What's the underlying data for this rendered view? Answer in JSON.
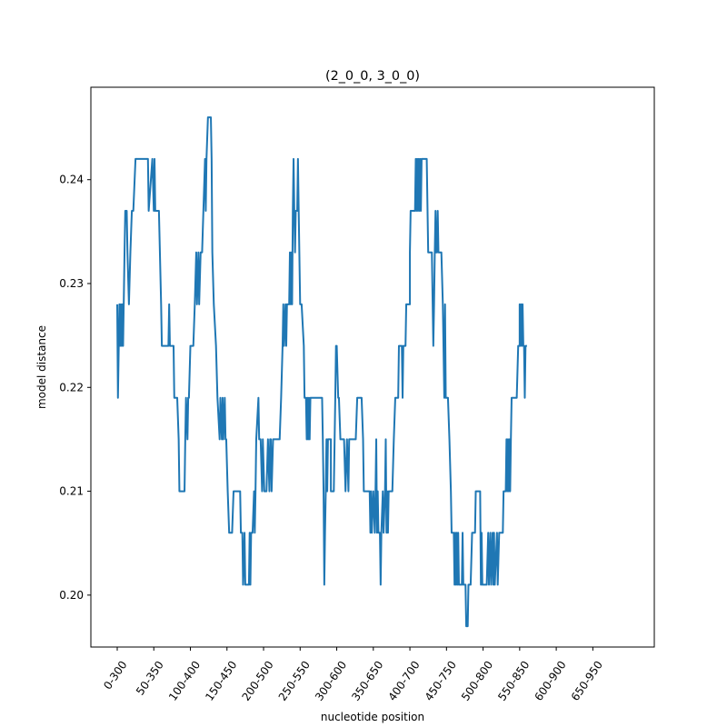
{
  "chart_data": {
    "type": "line",
    "title": "(2_0_0, 3_0_0)",
    "xlabel": "nucleotide position",
    "ylabel": "model distance",
    "x_tick_labels": [
      "0-300",
      "50-350",
      "100-400",
      "150-450",
      "200-500",
      "250-550",
      "300-600",
      "350-650",
      "400-700",
      "450-750",
      "500-800",
      "550-850",
      "600-900",
      "650-950"
    ],
    "x_tick_positions": [
      0,
      50,
      100,
      150,
      200,
      250,
      300,
      350,
      400,
      450,
      500,
      550,
      600,
      650
    ],
    "y_ticks": [
      0.2,
      0.21,
      0.22,
      0.23,
      0.24
    ],
    "y_tick_labels": [
      "0.20",
      "0.21",
      "0.22",
      "0.23",
      "0.24"
    ],
    "xlim": [
      -36,
      734
    ],
    "ylim": [
      0.195,
      0.2489
    ],
    "grid": false,
    "series": [
      {
        "color": "#1f77b4",
        "points": [
          [
            0,
            0.228
          ],
          [
            1,
            0.219
          ],
          [
            3,
            0.228
          ],
          [
            4,
            0.224
          ],
          [
            5,
            0.228
          ],
          [
            6,
            0.224
          ],
          [
            7,
            0.228
          ],
          [
            8,
            0.224
          ],
          [
            10,
            0.233
          ],
          [
            11,
            0.237
          ],
          [
            13,
            0.237
          ],
          [
            14,
            0.233
          ],
          [
            16,
            0.228
          ],
          [
            18,
            0.233
          ],
          [
            20,
            0.237
          ],
          [
            22,
            0.237
          ],
          [
            25,
            0.242
          ],
          [
            42,
            0.242
          ],
          [
            43,
            0.237
          ],
          [
            48,
            0.242
          ],
          [
            50,
            0.237
          ],
          [
            51,
            0.242
          ],
          [
            52,
            0.237
          ],
          [
            57,
            0.237
          ],
          [
            60,
            0.228
          ],
          [
            61,
            0.224
          ],
          [
            70,
            0.224
          ],
          [
            71,
            0.228
          ],
          [
            72,
            0.224
          ],
          [
            77,
            0.224
          ],
          [
            78,
            0.219
          ],
          [
            82,
            0.219
          ],
          [
            84,
            0.215
          ],
          [
            85,
            0.21
          ],
          [
            92,
            0.21
          ],
          [
            93,
            0.215
          ],
          [
            94,
            0.219
          ],
          [
            96,
            0.215
          ],
          [
            97,
            0.219
          ],
          [
            98,
            0.219
          ],
          [
            100,
            0.224
          ],
          [
            104,
            0.224
          ],
          [
            106,
            0.228
          ],
          [
            108,
            0.233
          ],
          [
            109,
            0.228
          ],
          [
            111,
            0.233
          ],
          [
            112,
            0.228
          ],
          [
            114,
            0.233
          ],
          [
            116,
            0.233
          ],
          [
            120,
            0.242
          ],
          [
            121,
            0.237
          ],
          [
            122,
            0.242
          ],
          [
            124,
            0.246
          ],
          [
            128,
            0.246
          ],
          [
            129,
            0.242
          ],
          [
            130,
            0.233
          ],
          [
            132,
            0.228
          ],
          [
            135,
            0.224
          ],
          [
            137,
            0.219
          ],
          [
            140,
            0.215
          ],
          [
            141,
            0.219
          ],
          [
            143,
            0.215
          ],
          [
            144,
            0.219
          ],
          [
            145,
            0.215
          ],
          [
            147,
            0.219
          ],
          [
            148,
            0.215
          ],
          [
            149,
            0.215
          ],
          [
            151,
            0.21
          ],
          [
            153,
            0.206
          ],
          [
            157,
            0.206
          ],
          [
            159,
            0.21
          ],
          [
            168,
            0.21
          ],
          [
            169,
            0.206
          ],
          [
            171,
            0.206
          ],
          [
            172,
            0.201
          ],
          [
            174,
            0.206
          ],
          [
            175,
            0.201
          ],
          [
            180,
            0.201
          ],
          [
            181,
            0.206
          ],
          [
            182,
            0.201
          ],
          [
            183,
            0.206
          ],
          [
            185,
            0.206
          ],
          [
            187,
            0.21
          ],
          [
            188,
            0.206
          ],
          [
            189,
            0.21
          ],
          [
            190,
            0.215
          ],
          [
            193,
            0.219
          ],
          [
            194,
            0.215
          ],
          [
            196,
            0.215
          ],
          [
            198,
            0.21
          ],
          [
            199,
            0.215
          ],
          [
            201,
            0.21
          ],
          [
            204,
            0.21
          ],
          [
            206,
            0.215
          ],
          [
            208,
            0.21
          ],
          [
            209,
            0.215
          ],
          [
            210,
            0.215
          ],
          [
            211,
            0.21
          ],
          [
            213,
            0.215
          ],
          [
            216,
            0.215
          ],
          [
            222,
            0.215
          ],
          [
            224,
            0.219
          ],
          [
            226,
            0.224
          ],
          [
            227,
            0.228
          ],
          [
            228,
            0.224
          ],
          [
            230,
            0.228
          ],
          [
            231,
            0.224
          ],
          [
            232,
            0.228
          ],
          [
            235,
            0.228
          ],
          [
            236,
            0.233
          ],
          [
            237,
            0.228
          ],
          [
            238,
            0.233
          ],
          [
            239,
            0.228
          ],
          [
            240,
            0.237
          ],
          [
            241,
            0.242
          ],
          [
            242,
            0.237
          ],
          [
            243,
            0.233
          ],
          [
            244,
            0.237
          ],
          [
            246,
            0.237
          ],
          [
            247,
            0.242
          ],
          [
            248,
            0.237
          ],
          [
            250,
            0.228
          ],
          [
            252,
            0.228
          ],
          [
            255,
            0.224
          ],
          [
            256,
            0.219
          ],
          [
            258,
            0.219
          ],
          [
            259,
            0.215
          ],
          [
            260,
            0.219
          ],
          [
            261,
            0.215
          ],
          [
            262,
            0.219
          ],
          [
            263,
            0.215
          ],
          [
            264,
            0.219
          ],
          [
            280,
            0.219
          ],
          [
            281,
            0.215
          ],
          [
            282,
            0.21
          ],
          [
            283,
            0.201
          ],
          [
            284,
            0.206
          ],
          [
            285,
            0.21
          ],
          [
            286,
            0.215
          ],
          [
            287,
            0.21
          ],
          [
            288,
            0.215
          ],
          [
            292,
            0.215
          ],
          [
            292,
            0.21
          ],
          [
            296,
            0.21
          ],
          [
            298,
            0.219
          ],
          [
            299,
            0.224
          ],
          [
            300,
            0.224
          ],
          [
            302,
            0.219
          ],
          [
            303,
            0.219
          ],
          [
            305,
            0.215
          ],
          [
            310,
            0.215
          ],
          [
            312,
            0.21
          ],
          [
            314,
            0.215
          ],
          [
            316,
            0.21
          ],
          [
            317,
            0.215
          ],
          [
            326,
            0.215
          ],
          [
            328,
            0.219
          ],
          [
            334,
            0.219
          ],
          [
            336,
            0.215
          ],
          [
            337,
            0.21
          ],
          [
            345,
            0.21
          ],
          [
            346,
            0.206
          ],
          [
            347,
            0.21
          ],
          [
            348,
            0.206
          ],
          [
            350,
            0.21
          ],
          [
            352,
            0.206
          ],
          [
            353,
            0.21
          ],
          [
            354,
            0.215
          ],
          [
            355,
            0.206
          ],
          [
            356,
            0.21
          ],
          [
            357,
            0.206
          ],
          [
            359,
            0.206
          ],
          [
            360,
            0.201
          ],
          [
            361,
            0.206
          ],
          [
            363,
            0.21
          ],
          [
            364,
            0.206
          ],
          [
            366,
            0.21
          ],
          [
            367,
            0.215
          ],
          [
            368,
            0.206
          ],
          [
            369,
            0.21
          ],
          [
            370,
            0.206
          ],
          [
            371,
            0.21
          ],
          [
            376,
            0.21
          ],
          [
            378,
            0.215
          ],
          [
            380,
            0.219
          ],
          [
            384,
            0.219
          ],
          [
            385,
            0.224
          ],
          [
            389,
            0.224
          ],
          [
            390,
            0.219
          ],
          [
            391,
            0.224
          ],
          [
            394,
            0.224
          ],
          [
            395,
            0.228
          ],
          [
            400,
            0.228
          ],
          [
            400,
            0.233
          ],
          [
            401,
            0.237
          ],
          [
            407,
            0.237
          ],
          [
            408,
            0.242
          ],
          [
            409,
            0.237
          ],
          [
            410,
            0.242
          ],
          [
            411,
            0.237
          ],
          [
            412,
            0.242
          ],
          [
            413,
            0.237
          ],
          [
            414,
            0.242
          ],
          [
            415,
            0.237
          ],
          [
            416,
            0.242
          ],
          [
            423,
            0.242
          ],
          [
            425,
            0.233
          ],
          [
            430,
            0.233
          ],
          [
            432,
            0.224
          ],
          [
            433,
            0.228
          ],
          [
            434,
            0.233
          ],
          [
            435,
            0.237
          ],
          [
            436,
            0.233
          ],
          [
            437,
            0.233
          ],
          [
            438,
            0.237
          ],
          [
            439,
            0.233
          ],
          [
            443,
            0.233
          ],
          [
            445,
            0.228
          ],
          [
            447,
            0.219
          ],
          [
            448,
            0.228
          ],
          [
            449,
            0.219
          ],
          [
            452,
            0.219
          ],
          [
            454,
            0.215
          ],
          [
            456,
            0.21
          ],
          [
            457,
            0.206
          ],
          [
            460,
            0.206
          ],
          [
            461,
            0.201
          ],
          [
            462,
            0.206
          ],
          [
            463,
            0.201
          ],
          [
            464,
            0.206
          ],
          [
            465,
            0.201
          ],
          [
            466,
            0.206
          ],
          [
            467,
            0.201
          ],
          [
            471,
            0.201
          ],
          [
            472,
            0.206
          ],
          [
            473,
            0.201
          ],
          [
            476,
            0.201
          ],
          [
            477,
            0.197
          ],
          [
            479,
            0.197
          ],
          [
            480,
            0.201
          ],
          [
            483,
            0.201
          ],
          [
            485,
            0.206
          ],
          [
            489,
            0.206
          ],
          [
            490,
            0.21
          ],
          [
            496,
            0.21
          ],
          [
            497,
            0.201
          ],
          [
            498,
            0.206
          ],
          [
            499,
            0.201
          ],
          [
            505,
            0.201
          ],
          [
            507,
            0.206
          ],
          [
            508,
            0.201
          ],
          [
            510,
            0.206
          ],
          [
            511,
            0.201
          ],
          [
            513,
            0.206
          ],
          [
            514,
            0.201
          ],
          [
            515,
            0.206
          ],
          [
            516,
            0.201
          ],
          [
            519,
            0.206
          ],
          [
            520,
            0.201
          ],
          [
            522,
            0.206
          ],
          [
            527,
            0.206
          ],
          [
            528,
            0.21
          ],
          [
            531,
            0.21
          ],
          [
            532,
            0.215
          ],
          [
            533,
            0.21
          ],
          [
            534,
            0.215
          ],
          [
            535,
            0.21
          ],
          [
            536,
            0.215
          ],
          [
            537,
            0.21
          ],
          [
            538,
            0.215
          ],
          [
            539,
            0.219
          ],
          [
            542,
            0.219
          ],
          [
            543,
            0.219
          ],
          [
            546,
            0.219
          ],
          [
            548,
            0.224
          ],
          [
            550,
            0.224
          ],
          [
            550,
            0.228
          ],
          [
            551,
            0.224
          ],
          [
            552,
            0.228
          ],
          [
            553,
            0.224
          ],
          [
            554,
            0.228
          ],
          [
            555,
            0.224
          ],
          [
            556,
            0.224
          ],
          [
            557,
            0.219
          ],
          [
            558,
            0.224
          ],
          [
            560,
            0.224
          ]
        ]
      }
    ]
  }
}
